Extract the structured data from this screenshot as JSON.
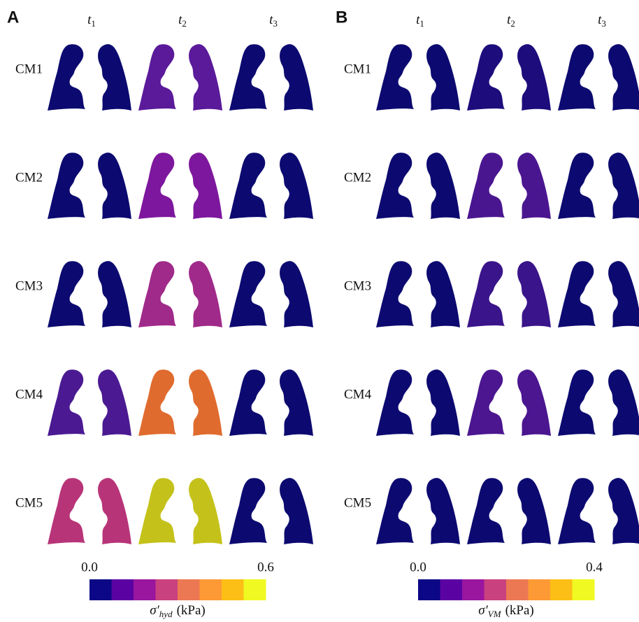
{
  "panels": [
    {
      "letter": "A",
      "columns": [
        {
          "base": "t",
          "sub": "1"
        },
        {
          "base": "t",
          "sub": "2"
        },
        {
          "base": "t",
          "sub": "3"
        }
      ],
      "rows": [
        {
          "label": "CM1",
          "fills": [
            "#0c0a70",
            "#5a1a9a",
            "#0c0a70"
          ]
        },
        {
          "label": "CM2",
          "fills": [
            "#0c0a70",
            "#7d179d",
            "#0c0a70"
          ]
        },
        {
          "label": "CM3",
          "fills": [
            "#0c0a70",
            "#a02a8a",
            "#0c0a70"
          ]
        },
        {
          "label": "CM4",
          "fills": [
            "#4b1a92",
            "#e06b2e",
            "#0c0a70"
          ]
        },
        {
          "label": "CM5",
          "fills": [
            "#b83478",
            "#c4c21a",
            "#0c0a70"
          ]
        }
      ],
      "colorbar": {
        "min": {
          "value": 0,
          "label": "0.0"
        },
        "max": {
          "value": 0.6,
          "label": "0.6"
        },
        "symbol": "σ′",
        "sub": "hyd",
        "unit": "(kPa)",
        "colors": [
          "#0b0786",
          "#5b02a3",
          "#9a169f",
          "#c9417e",
          "#ec7853",
          "#fd9a35",
          "#fcbf16",
          "#f0f921"
        ]
      }
    },
    {
      "letter": "B",
      "columns": [
        {
          "base": "t",
          "sub": "1"
        },
        {
          "base": "t",
          "sub": "2"
        },
        {
          "base": "t",
          "sub": "3"
        }
      ],
      "rows": [
        {
          "label": "CM1",
          "fills": [
            "#0c0a70",
            "#1c0c7c",
            "#0c0a70"
          ]
        },
        {
          "label": "CM2",
          "fills": [
            "#0c0a70",
            "#4a1690",
            "#0c0a70"
          ]
        },
        {
          "label": "CM3",
          "fills": [
            "#0c0a70",
            "#3a148a",
            "#0c0a70"
          ]
        },
        {
          "label": "CM4",
          "fills": [
            "#0c0a70",
            "#4b1690",
            "#0c0a70"
          ]
        },
        {
          "label": "CM5",
          "fills": [
            "#0c0a70",
            "#0c0a70",
            "#0c0a70"
          ]
        }
      ],
      "colorbar": {
        "min": {
          "value": 0,
          "label": "0.0"
        },
        "max": {
          "value": 0.4,
          "label": "0.4"
        },
        "symbol": "σ′",
        "sub": "VM",
        "unit": "(kPa)",
        "colors": [
          "#0b0786",
          "#5b02a3",
          "#9a169f",
          "#c9417e",
          "#ec7853",
          "#fd9a35",
          "#fcbf16",
          "#f0f921"
        ]
      }
    }
  ]
}
